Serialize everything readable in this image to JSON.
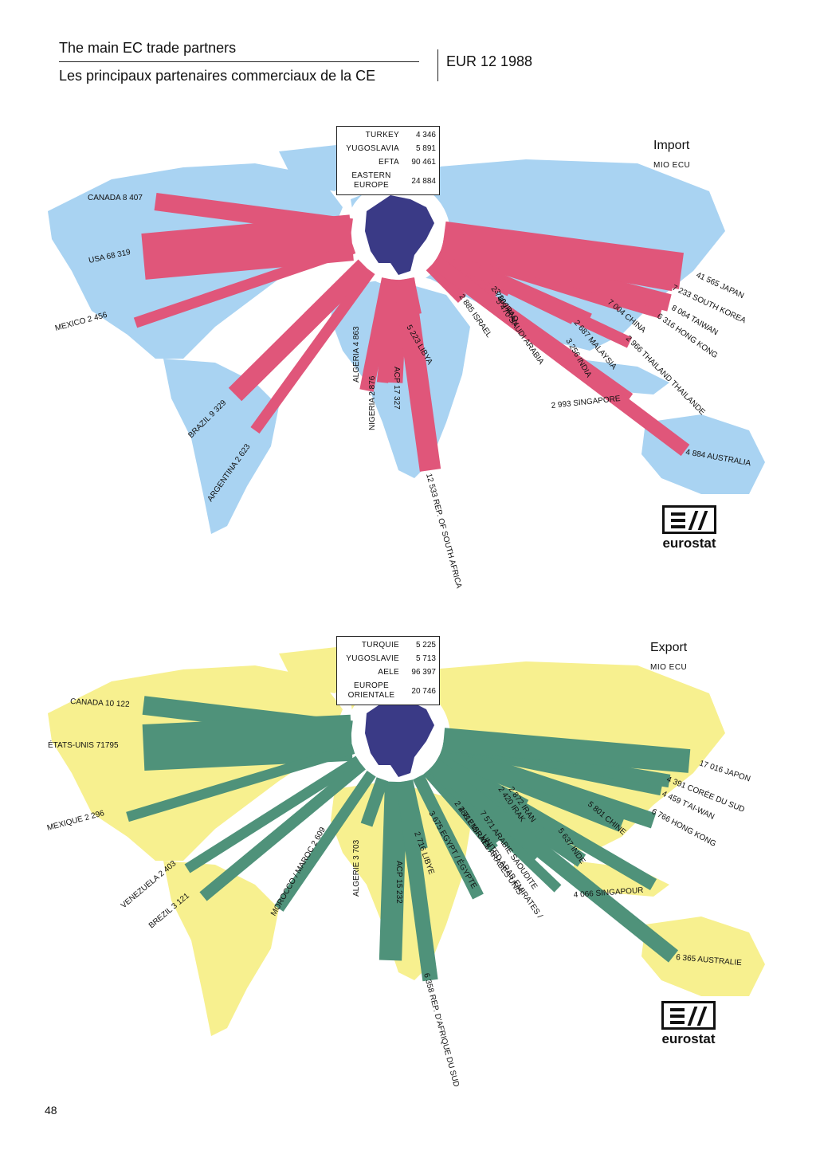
{
  "header": {
    "title_en": "The main EC trade partners",
    "title_fr": "Les principaux partenaires commerciaux de la CE",
    "eur": "EUR 12 1988"
  },
  "page_number": "48",
  "colors": {
    "import_flow": "#e0567a",
    "import_land": "#a9d3f2",
    "export_flow": "#4f927a",
    "export_land": "#f7f08f",
    "europe": "#3a3a86",
    "globe": "#ffffff"
  },
  "import": {
    "title": "Import",
    "unit": "MIO ECU",
    "logo": "eurostat",
    "legend": [
      {
        "name": "TURKEY",
        "value": "4 346"
      },
      {
        "name": "YUGOSLAVIA",
        "value": "5 891"
      },
      {
        "name": "EFTA",
        "value": "90 461"
      },
      {
        "name": "EASTERN EUROPE",
        "value": "24 884"
      }
    ],
    "flows": [
      {
        "label": "CANADA 8 407",
        "value": 8407
      },
      {
        "label": "USA 68 319",
        "value": 68319
      },
      {
        "label": "MEXICO 2 456",
        "value": 2456
      },
      {
        "label": "BRAZIL 9 329",
        "value": 9329
      },
      {
        "label": "ARGENTINA 2 623",
        "value": 2623
      },
      {
        "label": "ALGERIA 4 863",
        "value": 4863
      },
      {
        "label": "NIGERIA 2 876",
        "value": 2876
      },
      {
        "label": "ACP 17 327",
        "value": 17327
      },
      {
        "label": "5 223 LIBYA",
        "value": 5223
      },
      {
        "label": "12 533 REP. OF SOUTH AFRICA",
        "value": 12533
      },
      {
        "label": "2 885 ISRAEL",
        "value": 2885
      },
      {
        "label": "2 786 IRAQ",
        "value": 2786
      },
      {
        "label": "5 470 SAUDI ARABIA",
        "value": 5470
      },
      {
        "label": "3 106 IRAN",
        "value": 3106
      },
      {
        "label": "3 256 INDIA",
        "value": 3256
      },
      {
        "label": "2 687 MALAYSIA",
        "value": 2687
      },
      {
        "label": "2 966 THAILAND THAILANDE",
        "value": 2966
      },
      {
        "label": "7 004 CHINA",
        "value": 7004
      },
      {
        "label": "6 316 HONG KONG",
        "value": 6316
      },
      {
        "label": "8 064 TAIWAN",
        "value": 8064
      },
      {
        "label": "7 233 SOUTH KOREA",
        "value": 7233
      },
      {
        "label": "41 565 JAPAN",
        "value": 41565
      },
      {
        "label": "2 993 SINGAPORE",
        "value": 2993
      },
      {
        "label": "4 884 AUSTRALIA",
        "value": 4884
      }
    ]
  },
  "export": {
    "title": "Export",
    "unit": "MIO ECU",
    "logo": "eurostat",
    "legend": [
      {
        "name": "TURQUIE",
        "value": "5 225"
      },
      {
        "name": "YUGOSLAVIE",
        "value": "5 713"
      },
      {
        "name": "AELE",
        "value": "96 397"
      },
      {
        "name": "EUROPE ORIENTALE",
        "value": "20 746"
      }
    ],
    "flows": [
      {
        "label": "CANADA 10 122",
        "value": 10122
      },
      {
        "label": "ÉTATS-UNIS 71795",
        "value": 71795
      },
      {
        "label": "MEXIQUE 2 296",
        "value": 2296
      },
      {
        "label": "VENEZUELA 2 403",
        "value": 2403
      },
      {
        "label": "BREZIL 3 121",
        "value": 3121
      },
      {
        "label": "MOROCCO / MAROC 2 609",
        "value": 2609
      },
      {
        "label": "ALGERIE 3 703",
        "value": 3703
      },
      {
        "label": "ACP 15 232",
        "value": 15232
      },
      {
        "label": "2 716 LIBYE",
        "value": 2716
      },
      {
        "label": "6 358 REP. D'AFRIQUE DU SUD",
        "value": 6358
      },
      {
        "label": "3 675 EGYPT / ÉGYPTE",
        "value": 3675
      },
      {
        "label": "2 288 EMIRATS ARABES UNIS",
        "value": 2288
      },
      {
        "label": "4 712 ISRAEL",
        "value": 4712
      },
      {
        "label": "7 571 ARABIE SAOUDITE",
        "value": 7571
      },
      {
        "label": "UNITED ARAB EMIRATES /",
        "value": 2288
      },
      {
        "label": "2 420 IRAK",
        "value": 2420
      },
      {
        "label": "2 872 IRAN",
        "value": 2872
      },
      {
        "label": "5 637 INDE",
        "value": 5637
      },
      {
        "label": "5 801 CHINE",
        "value": 5801
      },
      {
        "label": "6 766 HONG KONG",
        "value": 6766
      },
      {
        "label": "4 459 T'AI-WAN",
        "value": 4459
      },
      {
        "label": "4 391 CORÉE DU SUD",
        "value": 4391
      },
      {
        "label": "17 016 JAPON",
        "value": 17016
      },
      {
        "label": "4 066 SINGAPOUR",
        "value": 4066
      },
      {
        "label": "6 365 AUSTRALIE",
        "value": 6365
      }
    ]
  }
}
